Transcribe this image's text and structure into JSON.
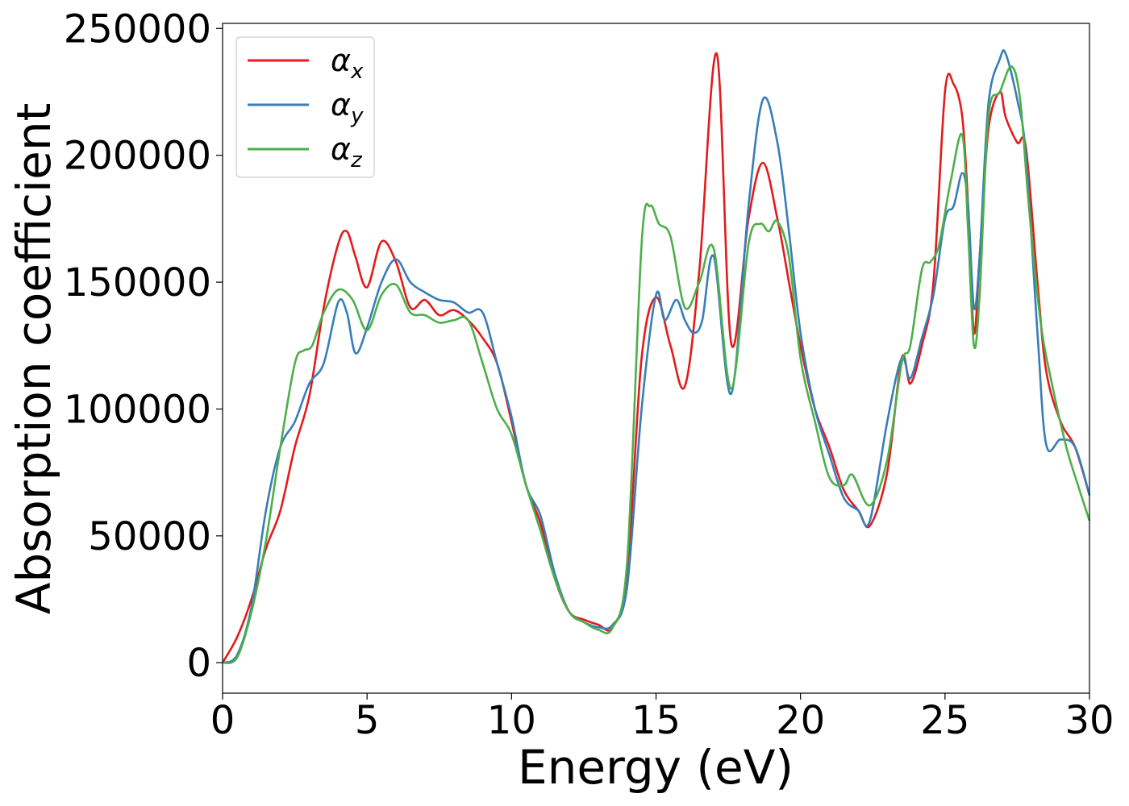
{
  "chart_data": {
    "type": "line",
    "xlabel": "Energy (eV)",
    "ylabel": "Absorption coefficient",
    "xlim": [
      0,
      30
    ],
    "ylim": [
      -12000,
      252000
    ],
    "xticks": [
      0,
      5,
      10,
      15,
      20,
      25,
      30
    ],
    "yticks": [
      0,
      50000,
      100000,
      150000,
      200000,
      250000
    ],
    "grid": false,
    "legend_position": "top-left",
    "series": [
      {
        "name": "α_x",
        "label_base": "α",
        "label_sub": "x",
        "color": "#e41a1c",
        "x": [
          0,
          0.5,
          1,
          1.5,
          2,
          2.5,
          3,
          3.5,
          4,
          4.3,
          4.6,
          5,
          5.5,
          6,
          6.5,
          7,
          7.5,
          8,
          8.5,
          9,
          9.5,
          10,
          10.5,
          11,
          11.5,
          12,
          12.5,
          13,
          13.5,
          14,
          14.5,
          15,
          15.5,
          16,
          16.5,
          17.1,
          17.6,
          18.2,
          18.7,
          19.2,
          19.6,
          20,
          20.5,
          21,
          21.5,
          22,
          22.4,
          23,
          23.5,
          23.8,
          24.2,
          24.6,
          25,
          25.3,
          25.6,
          25.8,
          26,
          26.2,
          26.5,
          26.9,
          27.1,
          27.5,
          27.8,
          28.2,
          28.5,
          29,
          29.5,
          30
        ],
        "y": [
          0,
          10000,
          25000,
          45000,
          60000,
          85000,
          105000,
          140000,
          165000,
          170000,
          160000,
          148000,
          166000,
          158000,
          140000,
          143000,
          137000,
          139000,
          135000,
          128000,
          118000,
          95000,
          70000,
          55000,
          33000,
          20000,
          17000,
          15000,
          14000,
          35000,
          120000,
          144000,
          125000,
          109000,
          155000,
          240000,
          126000,
          175000,
          197000,
          175000,
          150000,
          125000,
          100000,
          85000,
          68000,
          60000,
          54000,
          75000,
          120000,
          110000,
          125000,
          150000,
          225000,
          228000,
          215000,
          180000,
          130000,
          160000,
          210000,
          225000,
          215000,
          205000,
          203000,
          150000,
          115000,
          95000,
          85000,
          66000
        ]
      },
      {
        "name": "α_y",
        "label_base": "α",
        "label_sub": "y",
        "color": "#377eb8",
        "x": [
          0,
          0.5,
          1,
          1.5,
          2,
          2.5,
          3,
          3.5,
          4,
          4.3,
          4.6,
          5,
          5.5,
          6,
          6.5,
          7,
          7.5,
          8,
          8.5,
          9,
          9.5,
          10,
          10.5,
          11,
          11.5,
          12,
          12.5,
          13,
          13.5,
          14,
          14.5,
          15,
          15.3,
          15.7,
          16,
          16.3,
          16.6,
          17,
          17.6,
          18.2,
          18.7,
          19.2,
          19.6,
          20,
          20.5,
          21,
          21.5,
          22,
          22.4,
          23,
          23.5,
          23.8,
          24.2,
          24.6,
          25,
          25.3,
          25.6,
          25.8,
          26,
          26.2,
          26.5,
          26.9,
          27.1,
          27.5,
          27.8,
          28.2,
          28.5,
          29,
          29.5,
          30
        ],
        "y": [
          0,
          3000,
          22000,
          60000,
          85000,
          95000,
          110000,
          118000,
          142000,
          138000,
          122000,
          132000,
          150000,
          159000,
          150000,
          146000,
          143000,
          142000,
          138000,
          138000,
          118000,
          97000,
          70000,
          58000,
          35000,
          20000,
          16000,
          14000,
          15000,
          30000,
          100000,
          145000,
          135000,
          143000,
          135000,
          130000,
          135000,
          160000,
          106000,
          180000,
          222000,
          205000,
          170000,
          130000,
          100000,
          82000,
          65000,
          60000,
          56000,
          95000,
          120000,
          112000,
          128000,
          145000,
          175000,
          180000,
          193000,
          180000,
          140000,
          160000,
          220000,
          238000,
          240000,
          222000,
          200000,
          130000,
          86000,
          88000,
          85000,
          66000
        ]
      },
      {
        "name": "α_z",
        "label_base": "α",
        "label_sub": "z",
        "color": "#4daf4a",
        "x": [
          0,
          0.5,
          1,
          1.5,
          2,
          2.5,
          2.8,
          3.1,
          3.5,
          4,
          4.5,
          5,
          5.5,
          6,
          6.5,
          7,
          7.5,
          8,
          8.5,
          9,
          9.5,
          10,
          10.5,
          11,
          11.5,
          12,
          12.5,
          13,
          13.5,
          14,
          14.5,
          14.8,
          15.1,
          15.5,
          16,
          16.5,
          17,
          17.6,
          18.2,
          18.6,
          18.9,
          19.2,
          19.6,
          20,
          20.5,
          21,
          21.5,
          21.8,
          22.4,
          23,
          23.5,
          23.8,
          24.2,
          24.5,
          24.8,
          25.2,
          25.6,
          25.8,
          26,
          26.2,
          26.5,
          26.9,
          27.3,
          27.6,
          27.9,
          28.3,
          28.7,
          29.2,
          29.6,
          30
        ],
        "y": [
          0,
          2000,
          20000,
          48000,
          85000,
          118000,
          123000,
          125000,
          138000,
          147000,
          143000,
          131000,
          145000,
          149000,
          138000,
          137000,
          134000,
          135000,
          135000,
          118000,
          100000,
          90000,
          70000,
          52000,
          33000,
          20000,
          16000,
          13000,
          14000,
          40000,
          165000,
          180000,
          173000,
          168000,
          140000,
          150000,
          163000,
          108000,
          165000,
          173000,
          170000,
          174000,
          160000,
          120000,
          95000,
          73000,
          70000,
          74000,
          62000,
          80000,
          118000,
          125000,
          155000,
          158000,
          165000,
          190000,
          208000,
          170000,
          125000,
          145000,
          215000,
          225000,
          235000,
          222000,
          180000,
          135000,
          110000,
          85000,
          70000,
          56000
        ]
      }
    ]
  }
}
